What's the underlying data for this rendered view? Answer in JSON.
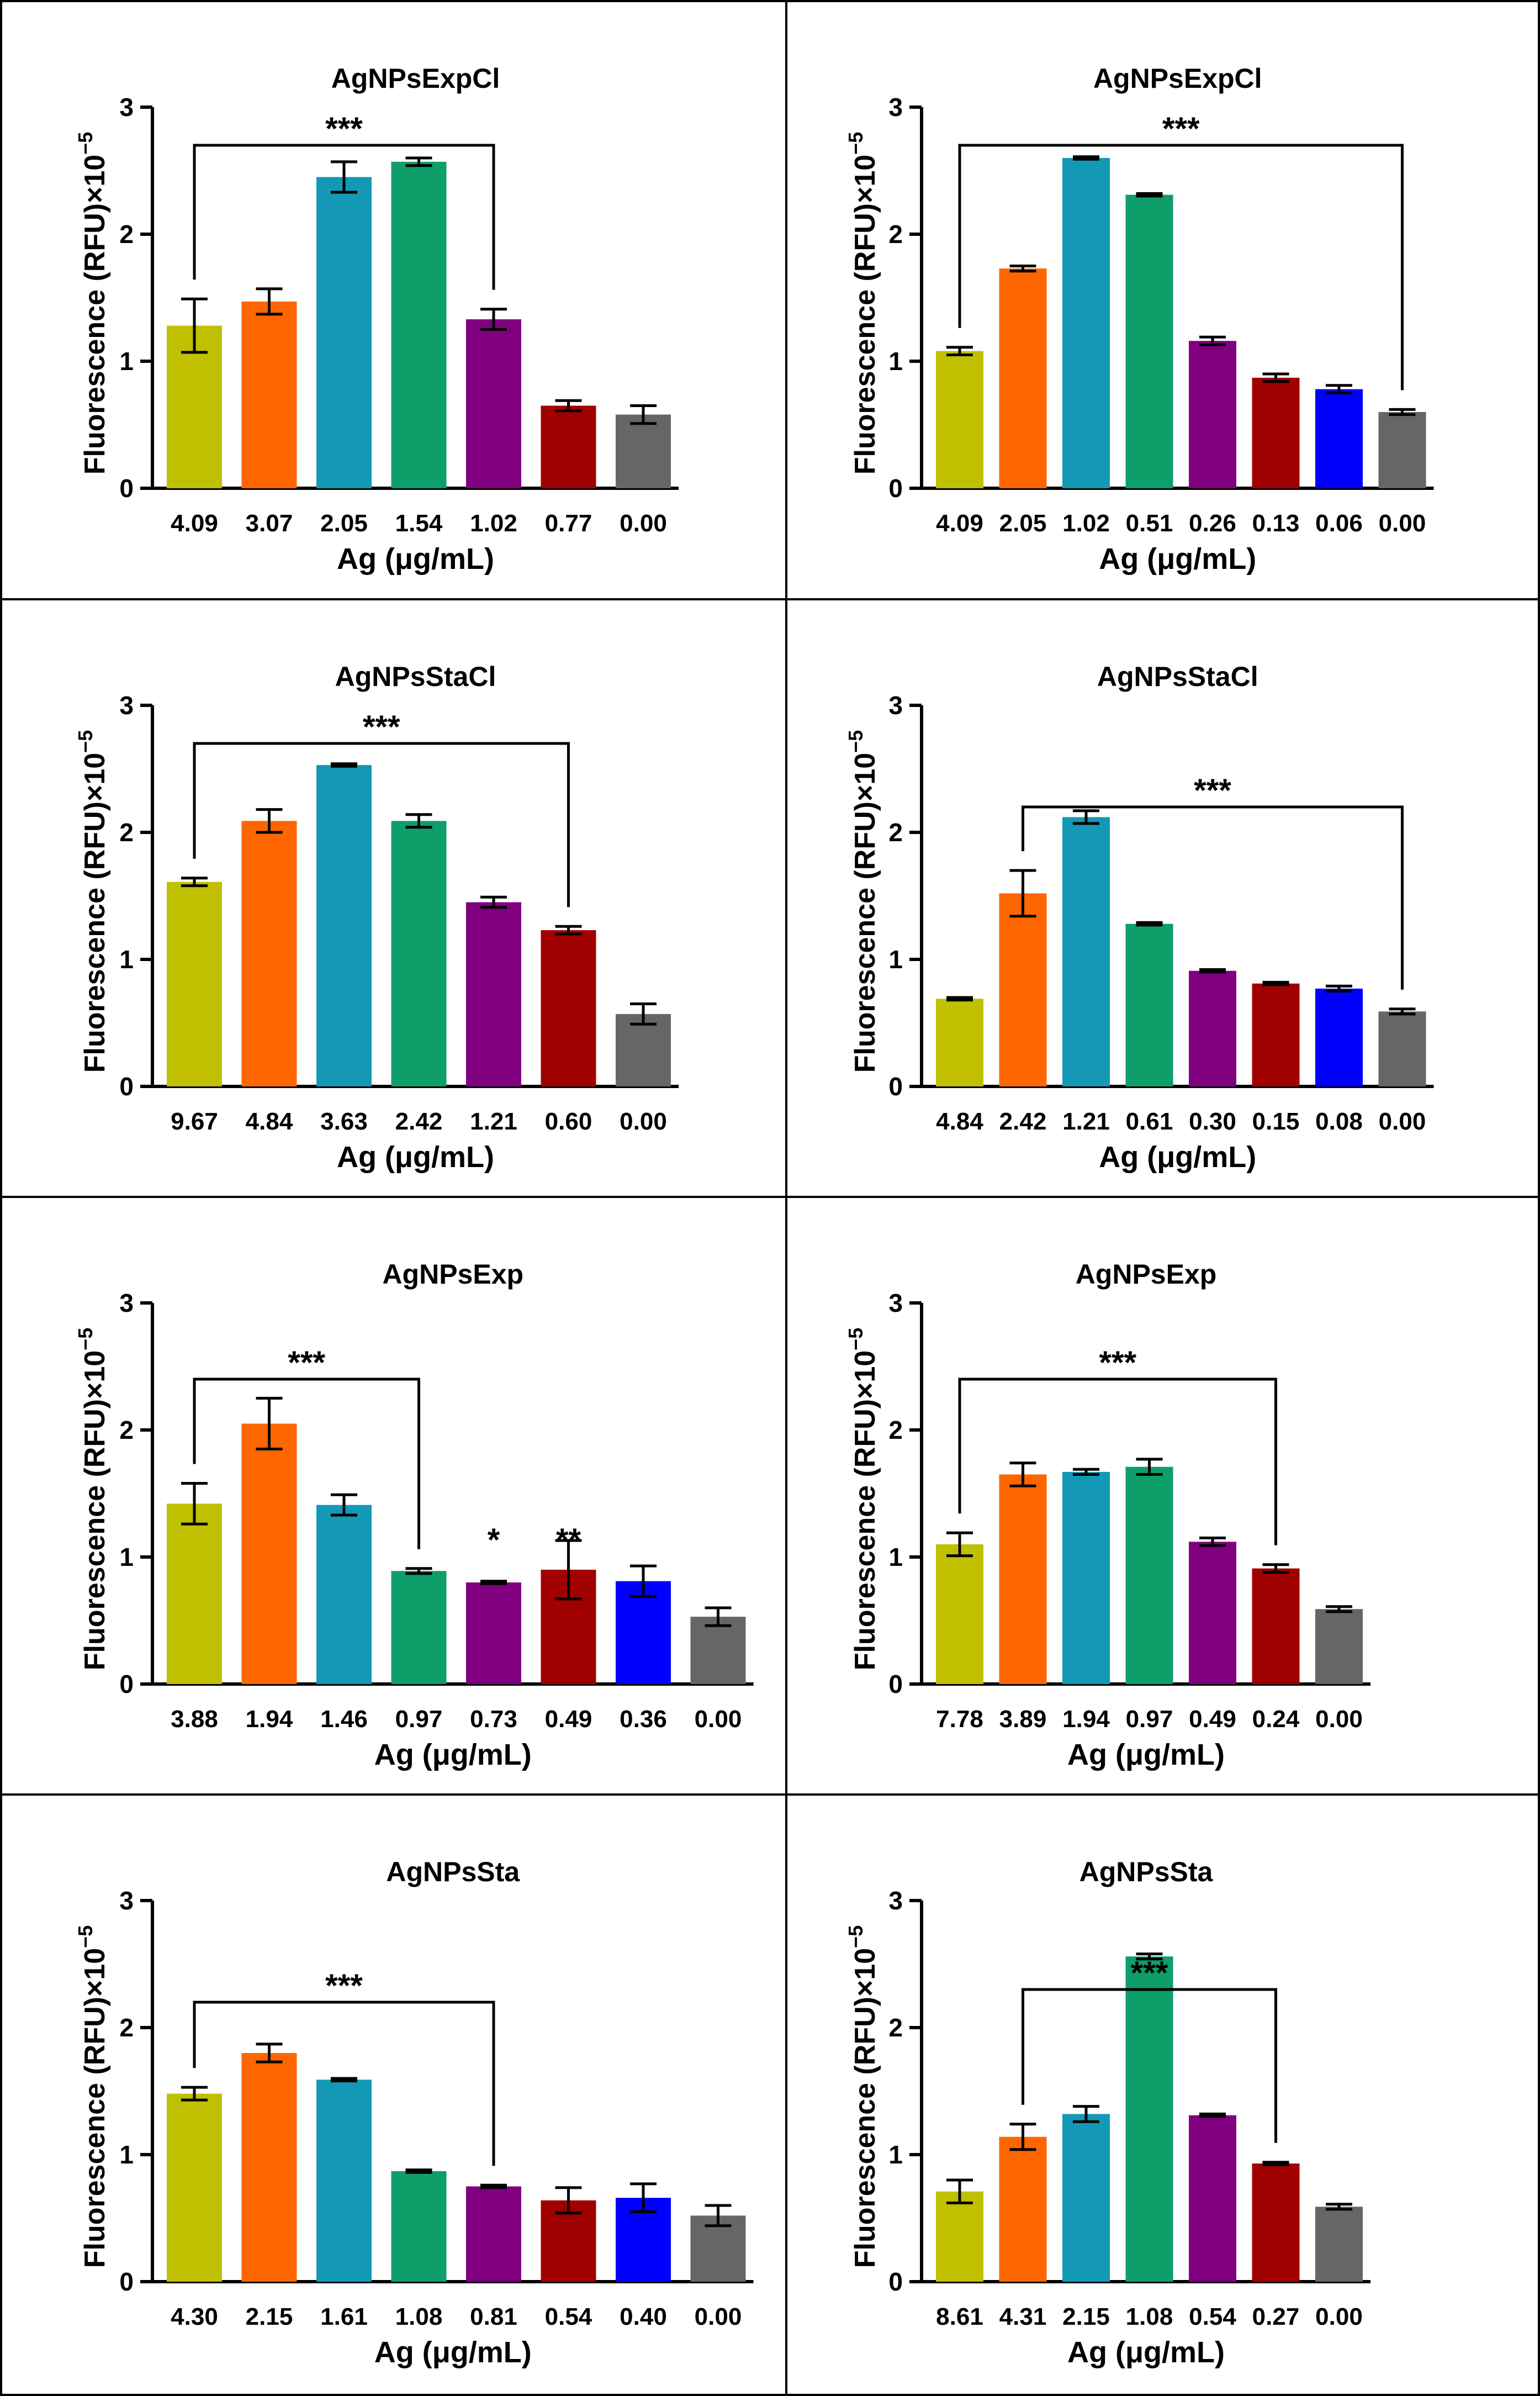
{
  "figure": {
    "ylabel_prefix": "Fluorescence (RFU)×10",
    "ylabel_exponent": "−5",
    "xlabel": "Ag (μg/mL)"
  },
  "chart_data": [
    {
      "type": "bar",
      "title": "AgNPsExpCl",
      "xlabel": "Ag (μg/mL)",
      "ylabel": "Fluorescence (RFU)×10−5",
      "ylim": [
        0,
        3
      ],
      "yticks": [
        "0",
        "1",
        "2",
        "3"
      ],
      "categories": [
        "4.09",
        "3.07",
        "2.05",
        "1.54",
        "1.02",
        "0.77",
        "0.00"
      ],
      "values": [
        1.28,
        1.47,
        2.45,
        2.57,
        1.33,
        0.65,
        0.58
      ],
      "errors": [
        0.21,
        0.1,
        0.12,
        0.03,
        0.08,
        0.04,
        0.07
      ],
      "colors": [
        "#c0c000",
        "#ff6600",
        "#1399b5",
        "#0e9e6a",
        "#800080",
        "#a00000",
        "#666666"
      ],
      "annotations": [
        {
          "type": "bracket",
          "from": 0,
          "to": 4,
          "y": 2.7,
          "label": "***"
        }
      ]
    },
    {
      "type": "bar",
      "title": "AgNPsExpCl",
      "xlabel": "Ag (μg/mL)",
      "ylabel": "Fluorescence (RFU)×10−5",
      "ylim": [
        0,
        3
      ],
      "yticks": [
        "0",
        "1",
        "2",
        "3"
      ],
      "categories": [
        "4.09",
        "2.05",
        "1.02",
        "0.51",
        "0.26",
        "0.13",
        "0.06",
        "0.00"
      ],
      "values": [
        1.08,
        1.73,
        2.6,
        2.31,
        1.16,
        0.87,
        0.78,
        0.6
      ],
      "errors": [
        0.03,
        0.02,
        0.01,
        0.01,
        0.03,
        0.03,
        0.03,
        0.02
      ],
      "colors": [
        "#c0c000",
        "#ff6600",
        "#1399b5",
        "#0e9e6a",
        "#800080",
        "#a00000",
        "#0000ff",
        "#666666"
      ],
      "annotations": [
        {
          "type": "bracket",
          "from": 0,
          "to": 7,
          "y": 2.7,
          "label": "***"
        }
      ]
    },
    {
      "type": "bar",
      "title": "AgNPsStaCl",
      "xlabel": "Ag (μg/mL)",
      "ylabel": "Fluorescence (RFU)×10−5",
      "ylim": [
        0,
        3
      ],
      "yticks": [
        "0",
        "1",
        "2",
        "3"
      ],
      "categories": [
        "9.67",
        "4.84",
        "3.63",
        "2.42",
        "1.21",
        "0.60",
        "0.00"
      ],
      "values": [
        1.61,
        2.09,
        2.53,
        2.09,
        1.45,
        1.23,
        0.57
      ],
      "errors": [
        0.03,
        0.09,
        0.01,
        0.05,
        0.04,
        0.03,
        0.08
      ],
      "colors": [
        "#c0c000",
        "#ff6600",
        "#1399b5",
        "#0e9e6a",
        "#800080",
        "#a00000",
        "#666666"
      ],
      "annotations": [
        {
          "type": "bracket",
          "from": 0,
          "to": 5,
          "y": 2.7,
          "label": "***"
        }
      ]
    },
    {
      "type": "bar",
      "title": "AgNPsStaCl",
      "xlabel": "Ag (μg/mL)",
      "ylabel": "Fluorescence (RFU)×10−5",
      "ylim": [
        0,
        3
      ],
      "yticks": [
        "0",
        "1",
        "2",
        "3"
      ],
      "categories": [
        "4.84",
        "2.42",
        "1.21",
        "0.61",
        "0.30",
        "0.15",
        "0.08",
        "0.00"
      ],
      "values": [
        0.69,
        1.52,
        2.12,
        1.28,
        0.91,
        0.81,
        0.77,
        0.59
      ],
      "errors": [
        0.01,
        0.18,
        0.05,
        0.01,
        0.01,
        0.01,
        0.02,
        0.02
      ],
      "colors": [
        "#c0c000",
        "#ff6600",
        "#1399b5",
        "#0e9e6a",
        "#800080",
        "#a00000",
        "#0000ff",
        "#666666"
      ],
      "annotations": [
        {
          "type": "bracket",
          "from": 1,
          "to": 7,
          "y": 2.2,
          "label": "***"
        }
      ]
    },
    {
      "type": "bar",
      "title": "AgNPsExp",
      "xlabel": "Ag (μg/mL)",
      "ylabel": "Fluorescence (RFU)×10−5",
      "ylim": [
        0,
        3
      ],
      "yticks": [
        "0",
        "1",
        "2",
        "3"
      ],
      "categories": [
        "3.88",
        "1.94",
        "1.46",
        "0.97",
        "0.73",
        "0.49",
        "0.36",
        "0.00"
      ],
      "values": [
        1.42,
        2.05,
        1.41,
        0.89,
        0.8,
        0.9,
        0.81,
        0.53
      ],
      "errors": [
        0.16,
        0.2,
        0.08,
        0.02,
        0.01,
        0.23,
        0.12,
        0.07
      ],
      "colors": [
        "#c0c000",
        "#ff6600",
        "#1399b5",
        "#0e9e6a",
        "#800080",
        "#a00000",
        "#0000ff",
        "#666666"
      ],
      "annotations": [
        {
          "type": "bracket",
          "from": 0,
          "to": 3,
          "y": 2.4,
          "label": "***"
        },
        {
          "type": "star",
          "at": 4,
          "y": 1.1,
          "label": "*"
        },
        {
          "type": "star",
          "at": 5,
          "y": 1.1,
          "label": "**"
        }
      ]
    },
    {
      "type": "bar",
      "title": "AgNPsExp",
      "xlabel": "Ag (μg/mL)",
      "ylabel": "Fluorescence (RFU)×10−5",
      "ylim": [
        0,
        3
      ],
      "yticks": [
        "0",
        "1",
        "2",
        "3"
      ],
      "categories": [
        "7.78",
        "3.89",
        "1.94",
        "0.97",
        "0.49",
        "0.24",
        "0.00"
      ],
      "values": [
        1.1,
        1.65,
        1.67,
        1.71,
        1.12,
        0.91,
        0.59
      ],
      "errors": [
        0.09,
        0.09,
        0.02,
        0.06,
        0.03,
        0.03,
        0.02
      ],
      "colors": [
        "#c0c000",
        "#ff6600",
        "#1399b5",
        "#0e9e6a",
        "#800080",
        "#a00000",
        "#666666"
      ],
      "annotations": [
        {
          "type": "bracket",
          "from": 0,
          "to": 5,
          "y": 2.4,
          "label": "***"
        }
      ]
    },
    {
      "type": "bar",
      "title": "AgNPsSta",
      "xlabel": "Ag (μg/mL)",
      "ylabel": "Fluorescence (RFU)×10−5",
      "ylim": [
        0,
        3
      ],
      "yticks": [
        "0",
        "1",
        "2",
        "3"
      ],
      "categories": [
        "4.30",
        "2.15",
        "1.61",
        "1.08",
        "0.81",
        "0.54",
        "0.40",
        "0.00"
      ],
      "values": [
        1.48,
        1.8,
        1.59,
        0.87,
        0.75,
        0.64,
        0.66,
        0.52
      ],
      "errors": [
        0.05,
        0.07,
        0.01,
        0.01,
        0.01,
        0.1,
        0.11,
        0.08
      ],
      "colors": [
        "#c0c000",
        "#ff6600",
        "#1399b5",
        "#0e9e6a",
        "#800080",
        "#a00000",
        "#0000ff",
        "#666666"
      ],
      "annotations": [
        {
          "type": "bracket",
          "from": 0,
          "to": 4,
          "y": 2.2,
          "label": "***"
        }
      ]
    },
    {
      "type": "bar",
      "title": "AgNPsSta",
      "xlabel": "Ag (μg/mL)",
      "ylabel": "Fluorescence (RFU)×10−5",
      "ylim": [
        0,
        3
      ],
      "yticks": [
        "0",
        "1",
        "2",
        "3"
      ],
      "categories": [
        "8.61",
        "4.31",
        "2.15",
        "1.08",
        "0.54",
        "0.27",
        "0.00"
      ],
      "values": [
        0.71,
        1.14,
        1.32,
        2.56,
        1.31,
        0.93,
        0.59
      ],
      "errors": [
        0.09,
        0.1,
        0.06,
        0.02,
        0.01,
        0.01,
        0.02
      ],
      "colors": [
        "#c0c000",
        "#ff6600",
        "#1399b5",
        "#0e9e6a",
        "#800080",
        "#a00000",
        "#666666"
      ],
      "annotations": [
        {
          "type": "bracket",
          "from": 1,
          "to": 5,
          "y": 2.3,
          "label": "***"
        }
      ]
    }
  ]
}
